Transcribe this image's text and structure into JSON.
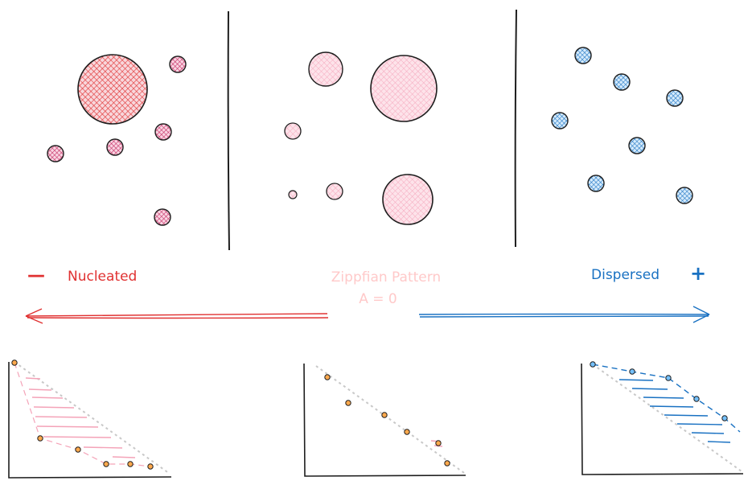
{
  "labels": {
    "nucleated": "Nucleated",
    "zipfian": "Zippfian Pattern",
    "zipfian_eq": "A = 0",
    "dispersed": "Dispersed",
    "minus": "—",
    "plus": "+"
  },
  "colors": {
    "nucleated": "#e03131",
    "nucleated_fill": "#e64980",
    "zipfian": "#ffc9c9",
    "zipfian_fill": "#fcc2d7",
    "dispersed": "#1971c2",
    "dispersed_fill": "#4dabf7",
    "axis": "#1e1e1e",
    "diagonal": "#c8c8c8",
    "point_fill": "#ffa94d"
  }
}
